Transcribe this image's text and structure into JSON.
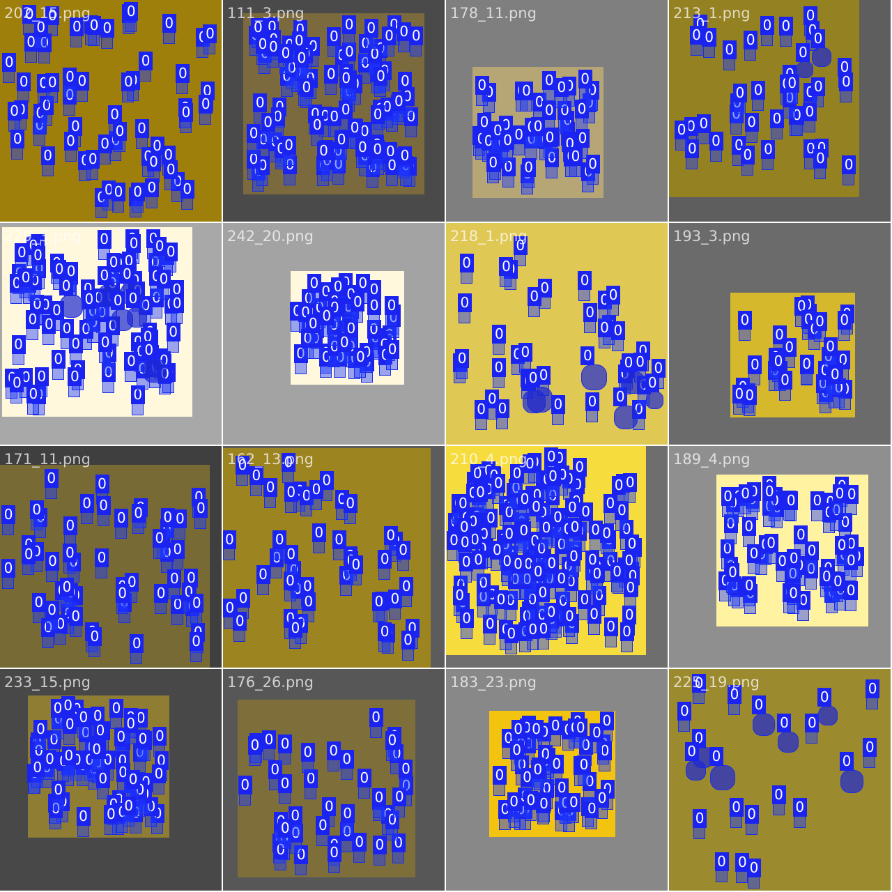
{
  "detection_class_label": "0",
  "colors": {
    "box": "#1a2fe8",
    "tag": "#1a23f0"
  },
  "tiles": [
    {
      "label": "202_15.png",
      "bg": "#9e7f0c",
      "sample": "#9e7f0c",
      "count": 58,
      "big": 0
    },
    {
      "label": "111_3.png",
      "bg": "#4a4a4a",
      "sample": "#7b6a3d",
      "count": 95,
      "big": 0
    },
    {
      "label": "178_11.png",
      "bg": "#7f7f7f",
      "sample": "#b6a675",
      "count": 46,
      "big": 0
    },
    {
      "label": "213_1.png",
      "bg": "#5e5e5e",
      "sample": "#948121",
      "count": 38,
      "big": 2
    },
    {
      "label": "229_3.png",
      "bg": "#a8a8a8",
      "sample": "#fff8dc",
      "count": 84,
      "big": 6
    },
    {
      "label": "242_20.png",
      "bg": "#a3a3a3",
      "sample": "#fff8dc",
      "count": 52,
      "big": 0
    },
    {
      "label": "218_1.png",
      "bg": "#e0c855",
      "sample": "#e0c855",
      "count": 34,
      "big": 6
    },
    {
      "label": "193_3.png",
      "bg": "#6b6b6b",
      "sample": "#d6b82c",
      "count": 36,
      "big": 0
    },
    {
      "label": "171_11.png",
      "bg": "#3f3f3f",
      "sample": "#776a35",
      "count": 54,
      "big": 0
    },
    {
      "label": "162_13.png",
      "bg": "#5c5c5c",
      "sample": "#9c8420",
      "count": 45,
      "big": 0
    },
    {
      "label": "210_4.png",
      "bg": "#6e6e6e",
      "sample": "#f6dc3d",
      "count": 155,
      "big": 0
    },
    {
      "label": "189_4.png",
      "bg": "#8f8f8f",
      "sample": "#fff2a0",
      "count": 62,
      "big": 0
    },
    {
      "label": "233_15.png",
      "bg": "#484848",
      "sample": "#8e7d32",
      "count": 72,
      "big": 0
    },
    {
      "label": "176_26.png",
      "bg": "#575757",
      "sample": "#7e6f3a",
      "count": 41,
      "big": 0
    },
    {
      "label": "183_23.png",
      "bg": "#888888",
      "sample": "#f2c40f",
      "count": 52,
      "big": 0
    },
    {
      "label": "225_19.png",
      "bg": "#9b8a2e",
      "sample": "#9b8a2e",
      "count": 14,
      "big": 7
    }
  ]
}
